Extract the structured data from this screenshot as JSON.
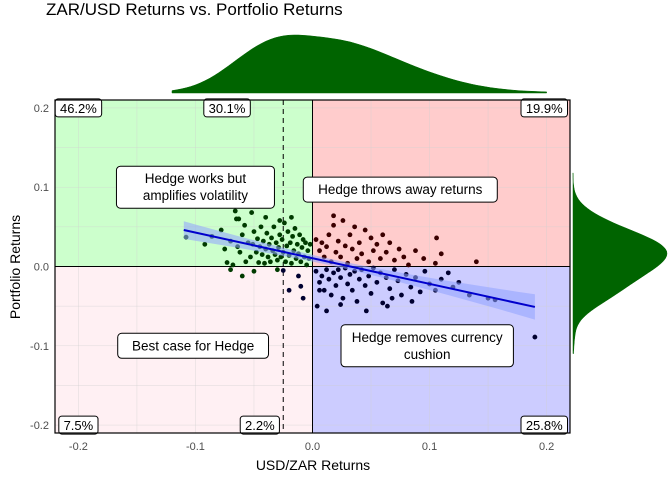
{
  "chart_data": {
    "type": "scatter",
    "title": "ZAR/USD Returns vs. Portfolio Returns",
    "xlabel": "USD/ZAR Returns",
    "ylabel": "Portfolio Returns",
    "xlim": [
      -0.22,
      0.22
    ],
    "ylim": [
      -0.21,
      0.21
    ],
    "x_ticks": [
      -0.2,
      -0.1,
      0.0,
      0.1,
      0.2
    ],
    "x_tick_labels": [
      "-0.2",
      "-0.1",
      "0.0",
      "0.1",
      "0.2"
    ],
    "y_ticks": [
      -0.2,
      -0.1,
      0.0,
      0.1,
      0.2
    ],
    "y_tick_labels": [
      "-0.2",
      "-0.1",
      "0.0",
      "0.1",
      "0.2"
    ],
    "grid": true,
    "vline_median_x": -0.025,
    "quadrant_colors": {
      "top_left": "#ccffcc",
      "top_right": "#ffcccc",
      "bottom_left": "#fff0f3",
      "bottom_right": "#ccccff"
    },
    "marginal_color": "#006400",
    "regression_line": {
      "x": [
        -0.11,
        0.19
      ],
      "y": [
        0.046,
        -0.051
      ],
      "color": "#0000cc",
      "band_color": "#8fa3ff"
    },
    "percent_labels": [
      {
        "position": "top-left",
        "x": -0.2,
        "y": 0.2,
        "text": "46.2%"
      },
      {
        "position": "top-middle",
        "x": -0.073,
        "y": 0.2,
        "text": "30.1%"
      },
      {
        "position": "top-right",
        "x": 0.198,
        "y": 0.2,
        "text": "19.9%"
      },
      {
        "position": "bottom-left",
        "x": -0.2,
        "y": -0.2,
        "text": "7.5%"
      },
      {
        "position": "bottom-middle",
        "x": -0.045,
        "y": -0.2,
        "text": "2.2%"
      },
      {
        "position": "bottom-right",
        "x": 0.198,
        "y": -0.2,
        "text": "25.8%"
      }
    ],
    "annotations": [
      {
        "x": -0.1,
        "y": 0.1,
        "lines": [
          "Hedge works but",
          "amplifies volatility"
        ]
      },
      {
        "x": 0.075,
        "y": 0.097,
        "lines": [
          "Hedge throws away returns"
        ]
      },
      {
        "x": -0.102,
        "y": -0.1,
        "lines": [
          "Best case for Hedge"
        ]
      },
      {
        "x": 0.098,
        "y": -0.1,
        "lines": [
          "Hedge removes currency",
          "cushion"
        ]
      }
    ],
    "points_dark_green": [
      [
        -0.108,
        0.037
      ],
      [
        -0.092,
        0.028
      ],
      [
        -0.086,
        0.038
      ],
      [
        -0.078,
        0.046
      ],
      [
        -0.075,
        0.022
      ],
      [
        -0.073,
        0.005
      ],
      [
        -0.07,
        0.032
      ],
      [
        -0.068,
        0.002
      ],
      [
        -0.065,
        0.06
      ],
      [
        -0.064,
        0.025
      ],
      [
        -0.062,
        0.018
      ],
      [
        -0.06,
        0.04
      ],
      [
        -0.058,
        0.052
      ],
      [
        -0.057,
        0.006
      ],
      [
        -0.055,
        0.03
      ],
      [
        -0.053,
        0.012
      ],
      [
        -0.051,
        0.028
      ],
      [
        -0.05,
        0.044
      ],
      [
        -0.048,
        0.018
      ],
      [
        -0.047,
        0.035
      ],
      [
        -0.046,
        0.005
      ],
      [
        -0.045,
        0.025
      ],
      [
        -0.044,
        0.05
      ],
      [
        -0.043,
        0.015
      ],
      [
        -0.042,
        0.032
      ],
      [
        -0.041,
        0.004
      ],
      [
        -0.04,
        0.022
      ],
      [
        -0.039,
        0.042
      ],
      [
        -0.038,
        0.012
      ],
      [
        -0.037,
        0.028
      ],
      [
        -0.036,
        0.006
      ],
      [
        -0.035,
        0.036
      ],
      [
        -0.034,
        0.02
      ],
      [
        -0.033,
        0.05
      ],
      [
        -0.032,
        0.015
      ],
      [
        -0.031,
        0.03
      ],
      [
        -0.03,
        0.008
      ],
      [
        -0.029,
        0.024
      ],
      [
        -0.028,
        0.04
      ],
      [
        -0.027,
        0.012
      ],
      [
        -0.026,
        0.034
      ],
      [
        -0.025,
        0.018
      ],
      [
        -0.024,
        0.055
      ],
      [
        -0.023,
        0.006
      ],
      [
        -0.022,
        0.026
      ],
      [
        -0.021,
        0.044
      ],
      [
        -0.02,
        0.014
      ],
      [
        -0.019,
        0.03
      ],
      [
        -0.018,
        0.004
      ],
      [
        -0.017,
        0.038
      ],
      [
        -0.016,
        0.02
      ],
      [
        -0.015,
        0.048
      ],
      [
        -0.014,
        0.01
      ],
      [
        -0.013,
        0.028
      ],
      [
        -0.012,
        0.016
      ],
      [
        -0.011,
        0.04
      ],
      [
        -0.01,
        0.006
      ],
      [
        -0.009,
        0.024
      ],
      [
        -0.008,
        0.034
      ],
      [
        -0.007,
        0.012
      ],
      [
        -0.006,
        0.03
      ],
      [
        -0.005,
        0.002
      ],
      [
        -0.004,
        0.02
      ],
      [
        -0.003,
        0.01
      ],
      [
        -0.002,
        0.028
      ],
      [
        -0.066,
        0.07
      ],
      [
        -0.063,
        0.06
      ],
      [
        -0.052,
        0.068
      ],
      [
        -0.04,
        0.062
      ],
      [
        -0.028,
        0.058
      ],
      [
        -0.018,
        0.062
      ],
      [
        -0.05,
        -0.006
      ],
      [
        -0.06,
        -0.012
      ],
      [
        -0.07,
        -0.004
      ],
      [
        -0.03,
        -0.004
      ]
    ],
    "points_dark_red": [
      [
        0.003,
        0.034
      ],
      [
        0.006,
        0.02
      ],
      [
        0.008,
        0.03
      ],
      [
        0.01,
        0.012
      ],
      [
        0.012,
        0.025
      ],
      [
        0.014,
        0.04
      ],
      [
        0.016,
        0.006
      ],
      [
        0.018,
        0.052
      ],
      [
        0.02,
        0.018
      ],
      [
        0.022,
        0.032
      ],
      [
        0.024,
        0.012
      ],
      [
        0.026,
        0.058
      ],
      [
        0.028,
        0.026
      ],
      [
        0.03,
        0.004
      ],
      [
        0.032,
        0.04
      ],
      [
        0.034,
        0.022
      ],
      [
        0.036,
        0.05
      ],
      [
        0.038,
        0.01
      ],
      [
        0.04,
        0.03
      ],
      [
        0.042,
        0.016
      ],
      [
        0.045,
        0.046
      ],
      [
        0.048,
        0.006
      ],
      [
        0.05,
        0.036
      ],
      [
        0.052,
        0.02
      ],
      [
        0.055,
        0.028
      ],
      [
        0.058,
        0.01
      ],
      [
        0.06,
        0.04
      ],
      [
        0.063,
        0.018
      ],
      [
        0.066,
        0.03
      ],
      [
        0.07,
        0.008
      ],
      [
        0.074,
        0.022
      ],
      [
        0.078,
        0.012
      ],
      [
        0.082,
        0.002
      ],
      [
        0.088,
        0.02
      ],
      [
        0.095,
        0.01
      ],
      [
        0.105,
        0.004
      ],
      [
        0.11,
        0.016
      ],
      [
        0.14,
        0.006
      ],
      [
        0.106,
        0.036
      ],
      [
        0.018,
        0.064
      ]
    ],
    "points_navy": [
      [
        0.003,
        -0.006
      ],
      [
        0.006,
        -0.02
      ],
      [
        0.008,
        -0.012
      ],
      [
        0.01,
        -0.03
      ],
      [
        0.012,
        -0.004
      ],
      [
        0.014,
        -0.016
      ],
      [
        0.016,
        -0.036
      ],
      [
        0.018,
        -0.008
      ],
      [
        0.02,
        -0.024
      ],
      [
        0.022,
        -0.004
      ],
      [
        0.024,
        -0.014
      ],
      [
        0.026,
        -0.04
      ],
      [
        0.028,
        -0.002
      ],
      [
        0.03,
        -0.022
      ],
      [
        0.032,
        -0.01
      ],
      [
        0.034,
        -0.03
      ],
      [
        0.036,
        -0.006
      ],
      [
        0.038,
        -0.044
      ],
      [
        0.04,
        -0.016
      ],
      [
        0.042,
        -0.004
      ],
      [
        0.045,
        -0.024
      ],
      [
        0.048,
        -0.012
      ],
      [
        0.05,
        -0.034
      ],
      [
        0.052,
        -0.002
      ],
      [
        0.055,
        -0.02
      ],
      [
        0.058,
        -0.008
      ],
      [
        0.06,
        -0.046
      ],
      [
        0.063,
        -0.014
      ],
      [
        0.066,
        -0.028
      ],
      [
        0.07,
        -0.004
      ],
      [
        0.073,
        -0.018
      ],
      [
        0.076,
        -0.036
      ],
      [
        0.08,
        -0.01
      ],
      [
        0.084,
        -0.026
      ],
      [
        0.088,
        -0.014
      ],
      [
        0.092,
        -0.032
      ],
      [
        0.096,
        -0.006
      ],
      [
        0.1,
        -0.022
      ],
      [
        0.105,
        -0.03
      ],
      [
        0.11,
        -0.016
      ],
      [
        0.116,
        -0.008
      ],
      [
        0.12,
        -0.026
      ],
      [
        0.125,
        -0.02
      ],
      [
        0.134,
        -0.036
      ],
      [
        0.15,
        -0.04
      ],
      [
        0.156,
        -0.042
      ],
      [
        0.19,
        -0.089
      ],
      [
        0.004,
        -0.05
      ],
      [
        0.012,
        -0.056
      ],
      [
        0.024,
        -0.048
      ],
      [
        0.046,
        -0.056
      ],
      [
        0.064,
        -0.05
      ],
      [
        0.006,
        -0.03
      ],
      [
        0.068,
        -0.04
      ],
      [
        0.085,
        -0.044
      ],
      [
        -0.01,
        -0.025
      ],
      [
        -0.012,
        -0.012
      ],
      [
        -0.02,
        -0.03
      ],
      [
        -0.025,
        -0.005
      ],
      [
        -0.008,
        -0.04
      ]
    ]
  }
}
